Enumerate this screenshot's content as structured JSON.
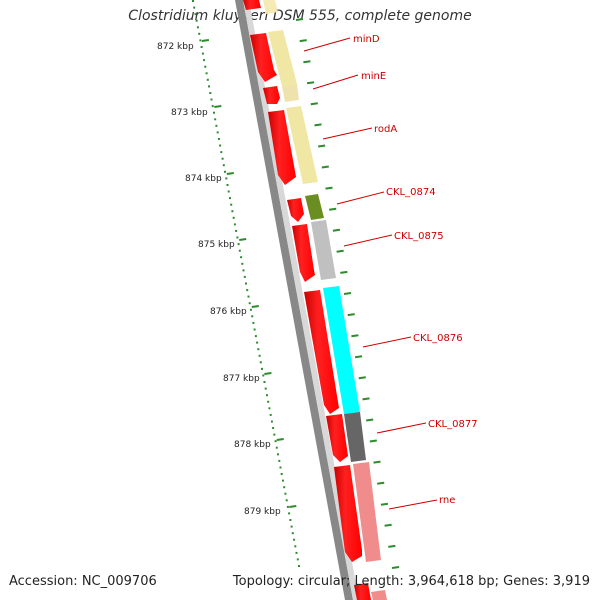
{
  "title": "Clostridium kluyveri DSM 555, complete genome",
  "accession": "Accession: NC_009706",
  "topology": "Topology: circular; Length: 3,964,618 bp; Genes: 3,919",
  "ruler_labels": [
    "872 kbp",
    "873 kbp",
    "874 kbp",
    "875 kbp",
    "876 kbp",
    "877 kbp",
    "878 kbp",
    "879 kbp"
  ],
  "genes": [
    {
      "name": "minD",
      "color": "#f0e6a0"
    },
    {
      "name": "minE",
      "color": "#f0e6a0"
    },
    {
      "name": "rodA",
      "color": "#f0e6a0"
    },
    {
      "name": "CKL_0874",
      "color": "#6b8e23"
    },
    {
      "name": "CKL_0875",
      "color": "#c0c0c0"
    },
    {
      "name": "CKL_0876",
      "color": "#00ffff"
    },
    {
      "name": "CKL_0877",
      "color": "#666666"
    },
    {
      "name": "rne",
      "color": "#f08080"
    }
  ],
  "colors": {
    "cds_strand": "#ff0000",
    "ruler": "#2e8b2e",
    "backbone": "#888888",
    "gene_label": "#cc0000"
  }
}
